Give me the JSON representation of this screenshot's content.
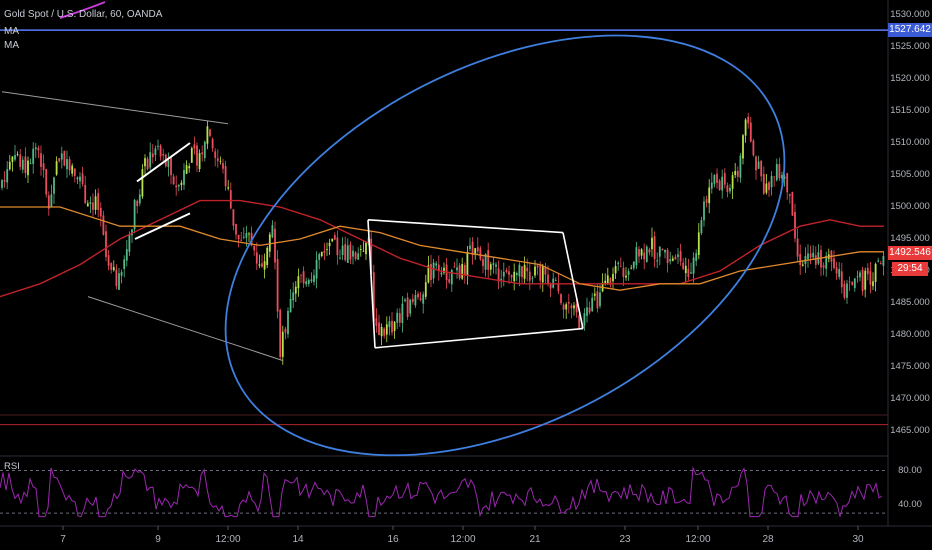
{
  "header": {
    "symbol": "Gold Spot / U.S. Dollar, 60, OANDA",
    "ma1": "MA",
    "ma2": "MA"
  },
  "colors": {
    "background": "#000000",
    "up": "#53b987",
    "up_bright": "#b8e34a",
    "down": "#eb4d5c",
    "ma_fast": "#e08a2c",
    "ma_slow": "#c0222a",
    "ellipse": "#3f7fe0",
    "hline": "#5b7bff",
    "red_hline": "#b0252c",
    "rsi": "#9c27b0",
    "trend": "#9c9c9c",
    "white_trend": "#ffffff",
    "tag_blue": "#3b5bd6",
    "tag_red": "#e83a3a"
  },
  "price_tags": {
    "hline_price": "1527.642",
    "last_price": "1492.546",
    "countdown": "29:54"
  },
  "chart_data": {
    "type": "candlestick",
    "title": "Gold Spot / U.S. Dollar, 60, OANDA",
    "ylim": [
      1461,
      1532
    ],
    "y_ticks": [
      "1530.000",
      "1525.000",
      "1520.000",
      "1515.000",
      "1510.000",
      "1505.000",
      "1500.000",
      "1495.000",
      "1490.000",
      "1485.000",
      "1480.000",
      "1475.000",
      "1470.000",
      "1465.000"
    ],
    "x_ticks": [
      "7",
      "9",
      "12:00",
      "14",
      "16",
      "12:00",
      "21",
      "23",
      "12:00",
      "28",
      "30"
    ],
    "close_path": [
      [
        0,
        1503
      ],
      [
        12,
        1509
      ],
      [
        25,
        1506
      ],
      [
        38,
        1510
      ],
      [
        48,
        1500
      ],
      [
        58,
        1508
      ],
      [
        72,
        1507
      ],
      [
        85,
        1502
      ],
      [
        98,
        1500
      ],
      [
        108,
        1490
      ],
      [
        120,
        1488
      ],
      [
        132,
        1498
      ],
      [
        142,
        1505
      ],
      [
        152,
        1509
      ],
      [
        165,
        1507
      ],
      [
        178,
        1503
      ],
      [
        190,
        1508
      ],
      [
        200,
        1508
      ],
      [
        208,
        1513
      ],
      [
        215,
        1508
      ],
      [
        225,
        1505
      ],
      [
        233,
        1498
      ],
      [
        240,
        1494
      ],
      [
        250,
        1495
      ],
      [
        262,
        1491
      ],
      [
        272,
        1499
      ],
      [
        280,
        1478
      ],
      [
        290,
        1484
      ],
      [
        300,
        1489
      ],
      [
        312,
        1490
      ],
      [
        325,
        1494
      ],
      [
        340,
        1493
      ],
      [
        355,
        1493
      ],
      [
        368,
        1495
      ],
      [
        375,
        1481
      ],
      [
        390,
        1481
      ],
      [
        405,
        1484
      ],
      [
        420,
        1486
      ],
      [
        430,
        1490
      ],
      [
        445,
        1490
      ],
      [
        460,
        1489
      ],
      [
        475,
        1495
      ],
      [
        490,
        1490
      ],
      [
        505,
        1489
      ],
      [
        520,
        1490
      ],
      [
        535,
        1490
      ],
      [
        550,
        1489
      ],
      [
        565,
        1485
      ],
      [
        580,
        1482
      ],
      [
        595,
        1485
      ],
      [
        605,
        1488
      ],
      [
        620,
        1490
      ],
      [
        635,
        1492
      ],
      [
        650,
        1494
      ],
      [
        665,
        1492
      ],
      [
        680,
        1492
      ],
      [
        692,
        1490
      ],
      [
        700,
        1498
      ],
      [
        712,
        1505
      ],
      [
        725,
        1503
      ],
      [
        738,
        1506
      ],
      [
        748,
        1514
      ],
      [
        755,
        1507
      ],
      [
        765,
        1503
      ],
      [
        778,
        1506
      ],
      [
        790,
        1503
      ],
      [
        797,
        1492
      ],
      [
        810,
        1492
      ],
      [
        825,
        1492
      ],
      [
        838,
        1491
      ],
      [
        845,
        1487
      ],
      [
        858,
        1488
      ],
      [
        870,
        1489
      ],
      [
        884,
        1492
      ]
    ],
    "ma_fast": [
      [
        0,
        1500
      ],
      [
        60,
        1500
      ],
      [
        120,
        1497
      ],
      [
        180,
        1497
      ],
      [
        220,
        1495
      ],
      [
        260,
        1494
      ],
      [
        300,
        1495
      ],
      [
        340,
        1497
      ],
      [
        380,
        1496
      ],
      [
        420,
        1494
      ],
      [
        460,
        1493
      ],
      [
        500,
        1492
      ],
      [
        540,
        1491
      ],
      [
        580,
        1488
      ],
      [
        620,
        1487
      ],
      [
        660,
        1488
      ],
      [
        700,
        1488
      ],
      [
        740,
        1490
      ],
      [
        780,
        1491
      ],
      [
        820,
        1492
      ],
      [
        860,
        1493
      ],
      [
        884,
        1493
      ]
    ],
    "ma_slow": [
      [
        0,
        1486
      ],
      [
        40,
        1488
      ],
      [
        80,
        1491
      ],
      [
        120,
        1495
      ],
      [
        160,
        1498
      ],
      [
        200,
        1501
      ],
      [
        240,
        1501
      ],
      [
        280,
        1500
      ],
      [
        320,
        1498
      ],
      [
        360,
        1495
      ],
      [
        400,
        1492
      ],
      [
        440,
        1490
      ],
      [
        480,
        1489
      ],
      [
        520,
        1488
      ],
      [
        560,
        1488
      ],
      [
        600,
        1488
      ],
      [
        640,
        1488
      ],
      [
        680,
        1488
      ],
      [
        720,
        1490
      ],
      [
        760,
        1494
      ],
      [
        800,
        1497
      ],
      [
        830,
        1498
      ],
      [
        860,
        1497
      ],
      [
        884,
        1497
      ]
    ],
    "horizontal_lines": [
      1527.642,
      1466
    ],
    "annotations": {
      "ellipse": {
        "center_x": 505,
        "center_price": 1494,
        "rx": 300,
        "ry_price": 28,
        "angle_deg": -27
      },
      "wedge_left": [
        [
          [
            2,
            1518
          ],
          [
            228,
            1513
          ]
        ],
        [
          [
            88,
            1486
          ],
          [
            283,
            1476
          ]
        ]
      ],
      "channel_small": [
        [
          [
            137,
            1504
          ],
          [
            190,
            1510
          ]
        ],
        [
          [
            135,
            1495
          ],
          [
            190,
            1499
          ]
        ]
      ],
      "triangle": [
        [
          [
            368,
            1498
          ],
          [
            563,
            1496
          ]
        ],
        [
          [
            375,
            1478
          ],
          [
            583,
            1481
          ]
        ],
        [
          [
            368,
            1498
          ],
          [
            375,
            1478
          ]
        ],
        [
          [
            563,
            1496
          ],
          [
            583,
            1481
          ]
        ]
      ]
    },
    "rsi": {
      "label": "RSI",
      "levels": [
        80,
        30
      ],
      "y_ticks": [
        "80.00",
        "40.00"
      ],
      "ylim": [
        22,
        90
      ]
    }
  }
}
